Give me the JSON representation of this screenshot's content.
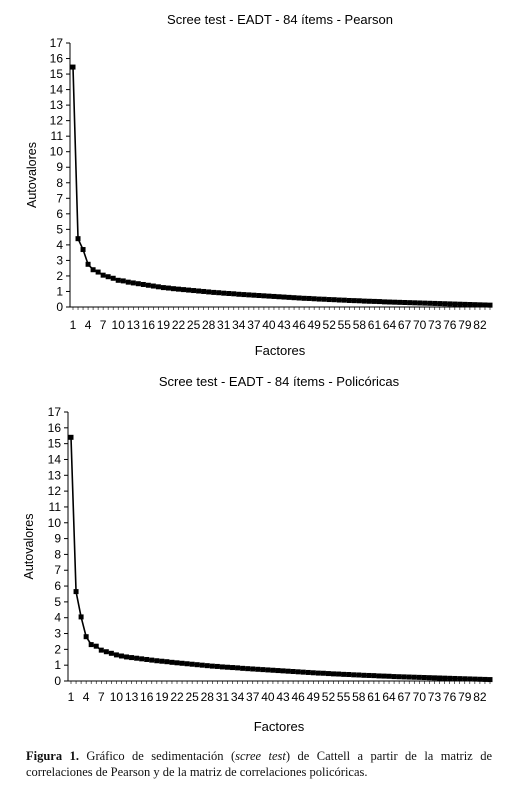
{
  "chart_data": [
    {
      "type": "line",
      "title": "Scree test - EADT - 84 ítems - Pearson",
      "xlabel": "Factores",
      "ylabel": "Autovalores",
      "ylim": [
        0,
        17
      ],
      "yticks": [
        0,
        1,
        2,
        3,
        4,
        5,
        6,
        7,
        8,
        9,
        10,
        11,
        12,
        13,
        14,
        15,
        16,
        17
      ],
      "xtick_labels": [
        "1",
        "4",
        "7",
        "10",
        "13",
        "16",
        "19",
        "22",
        "25",
        "28",
        "31",
        "34",
        "37",
        "40",
        "43",
        "46",
        "49",
        "52",
        "55",
        "58",
        "61",
        "64",
        "67",
        "70",
        "73",
        "76",
        "79",
        "82"
      ],
      "x": [
        1,
        2,
        3,
        4,
        5,
        6,
        7,
        8,
        9,
        10,
        11,
        12,
        13,
        14,
        15,
        16,
        17,
        18,
        19,
        20,
        21,
        22,
        23,
        24,
        25,
        26,
        27,
        28,
        29,
        30,
        31,
        32,
        33,
        34,
        35,
        36,
        37,
        38,
        39,
        40,
        41,
        42,
        43,
        44,
        45,
        46,
        47,
        48,
        49,
        50,
        51,
        52,
        53,
        54,
        55,
        56,
        57,
        58,
        59,
        60,
        61,
        62,
        63,
        64,
        65,
        66,
        67,
        68,
        69,
        70,
        71,
        72,
        73,
        74,
        75,
        76,
        77,
        78,
        79,
        80,
        81,
        82,
        83,
        84
      ],
      "values": [
        15.45,
        4.4,
        3.7,
        2.75,
        2.4,
        2.25,
        2.05,
        1.95,
        1.85,
        1.72,
        1.68,
        1.6,
        1.55,
        1.5,
        1.45,
        1.4,
        1.35,
        1.3,
        1.25,
        1.22,
        1.18,
        1.15,
        1.12,
        1.09,
        1.06,
        1.03,
        1.0,
        0.97,
        0.94,
        0.92,
        0.89,
        0.87,
        0.85,
        0.82,
        0.8,
        0.78,
        0.76,
        0.74,
        0.72,
        0.7,
        0.68,
        0.66,
        0.64,
        0.62,
        0.6,
        0.58,
        0.56,
        0.55,
        0.53,
        0.51,
        0.5,
        0.48,
        0.47,
        0.45,
        0.44,
        0.42,
        0.41,
        0.4,
        0.38,
        0.37,
        0.36,
        0.35,
        0.33,
        0.32,
        0.31,
        0.3,
        0.29,
        0.28,
        0.27,
        0.26,
        0.25,
        0.24,
        0.23,
        0.22,
        0.21,
        0.2,
        0.19,
        0.18,
        0.17,
        0.16,
        0.15,
        0.14,
        0.13,
        0.12
      ]
    },
    {
      "type": "line",
      "title": "Scree test - EADT - 84 ítems - Policóricas",
      "xlabel": "Factores",
      "ylabel": "Autovalores",
      "ylim": [
        0,
        17
      ],
      "yticks": [
        0,
        1,
        2,
        3,
        4,
        5,
        6,
        7,
        8,
        9,
        10,
        11,
        12,
        13,
        14,
        15,
        16,
        17
      ],
      "xtick_labels": [
        "1",
        "4",
        "7",
        "10",
        "13",
        "16",
        "19",
        "22",
        "25",
        "28",
        "31",
        "34",
        "37",
        "40",
        "43",
        "46",
        "49",
        "52",
        "55",
        "58",
        "61",
        "64",
        "67",
        "70",
        "73",
        "76",
        "79",
        "82"
      ],
      "x": [
        1,
        2,
        3,
        4,
        5,
        6,
        7,
        8,
        9,
        10,
        11,
        12,
        13,
        14,
        15,
        16,
        17,
        18,
        19,
        20,
        21,
        22,
        23,
        24,
        25,
        26,
        27,
        28,
        29,
        30,
        31,
        32,
        33,
        34,
        35,
        36,
        37,
        38,
        39,
        40,
        41,
        42,
        43,
        44,
        45,
        46,
        47,
        48,
        49,
        50,
        51,
        52,
        53,
        54,
        55,
        56,
        57,
        58,
        59,
        60,
        61,
        62,
        63,
        64,
        65,
        66,
        67,
        68,
        69,
        70,
        71,
        72,
        73,
        74,
        75,
        76,
        77,
        78,
        79,
        80,
        81,
        82,
        83,
        84
      ],
      "values": [
        15.4,
        5.65,
        4.05,
        2.8,
        2.3,
        2.2,
        1.95,
        1.85,
        1.75,
        1.65,
        1.58,
        1.52,
        1.48,
        1.44,
        1.4,
        1.36,
        1.32,
        1.28,
        1.25,
        1.22,
        1.18,
        1.15,
        1.12,
        1.09,
        1.06,
        1.03,
        1.0,
        0.97,
        0.94,
        0.92,
        0.89,
        0.87,
        0.85,
        0.83,
        0.8,
        0.78,
        0.76,
        0.74,
        0.72,
        0.7,
        0.68,
        0.66,
        0.64,
        0.62,
        0.6,
        0.58,
        0.56,
        0.54,
        0.52,
        0.5,
        0.49,
        0.47,
        0.45,
        0.44,
        0.42,
        0.41,
        0.39,
        0.38,
        0.36,
        0.35,
        0.34,
        0.32,
        0.31,
        0.3,
        0.28,
        0.27,
        0.26,
        0.25,
        0.24,
        0.23,
        0.22,
        0.21,
        0.2,
        0.19,
        0.18,
        0.17,
        0.16,
        0.15,
        0.14,
        0.13,
        0.12,
        0.11,
        0.1,
        0.09
      ]
    }
  ],
  "caption": {
    "label": "Figura 1.",
    "text_before": " Gráfico de sedimentación (",
    "italic": "scree test",
    "text_after": ") de Cattell a partir de la matriz de correlaciones de Pearson y de la matriz de correlaciones policóricas."
  }
}
